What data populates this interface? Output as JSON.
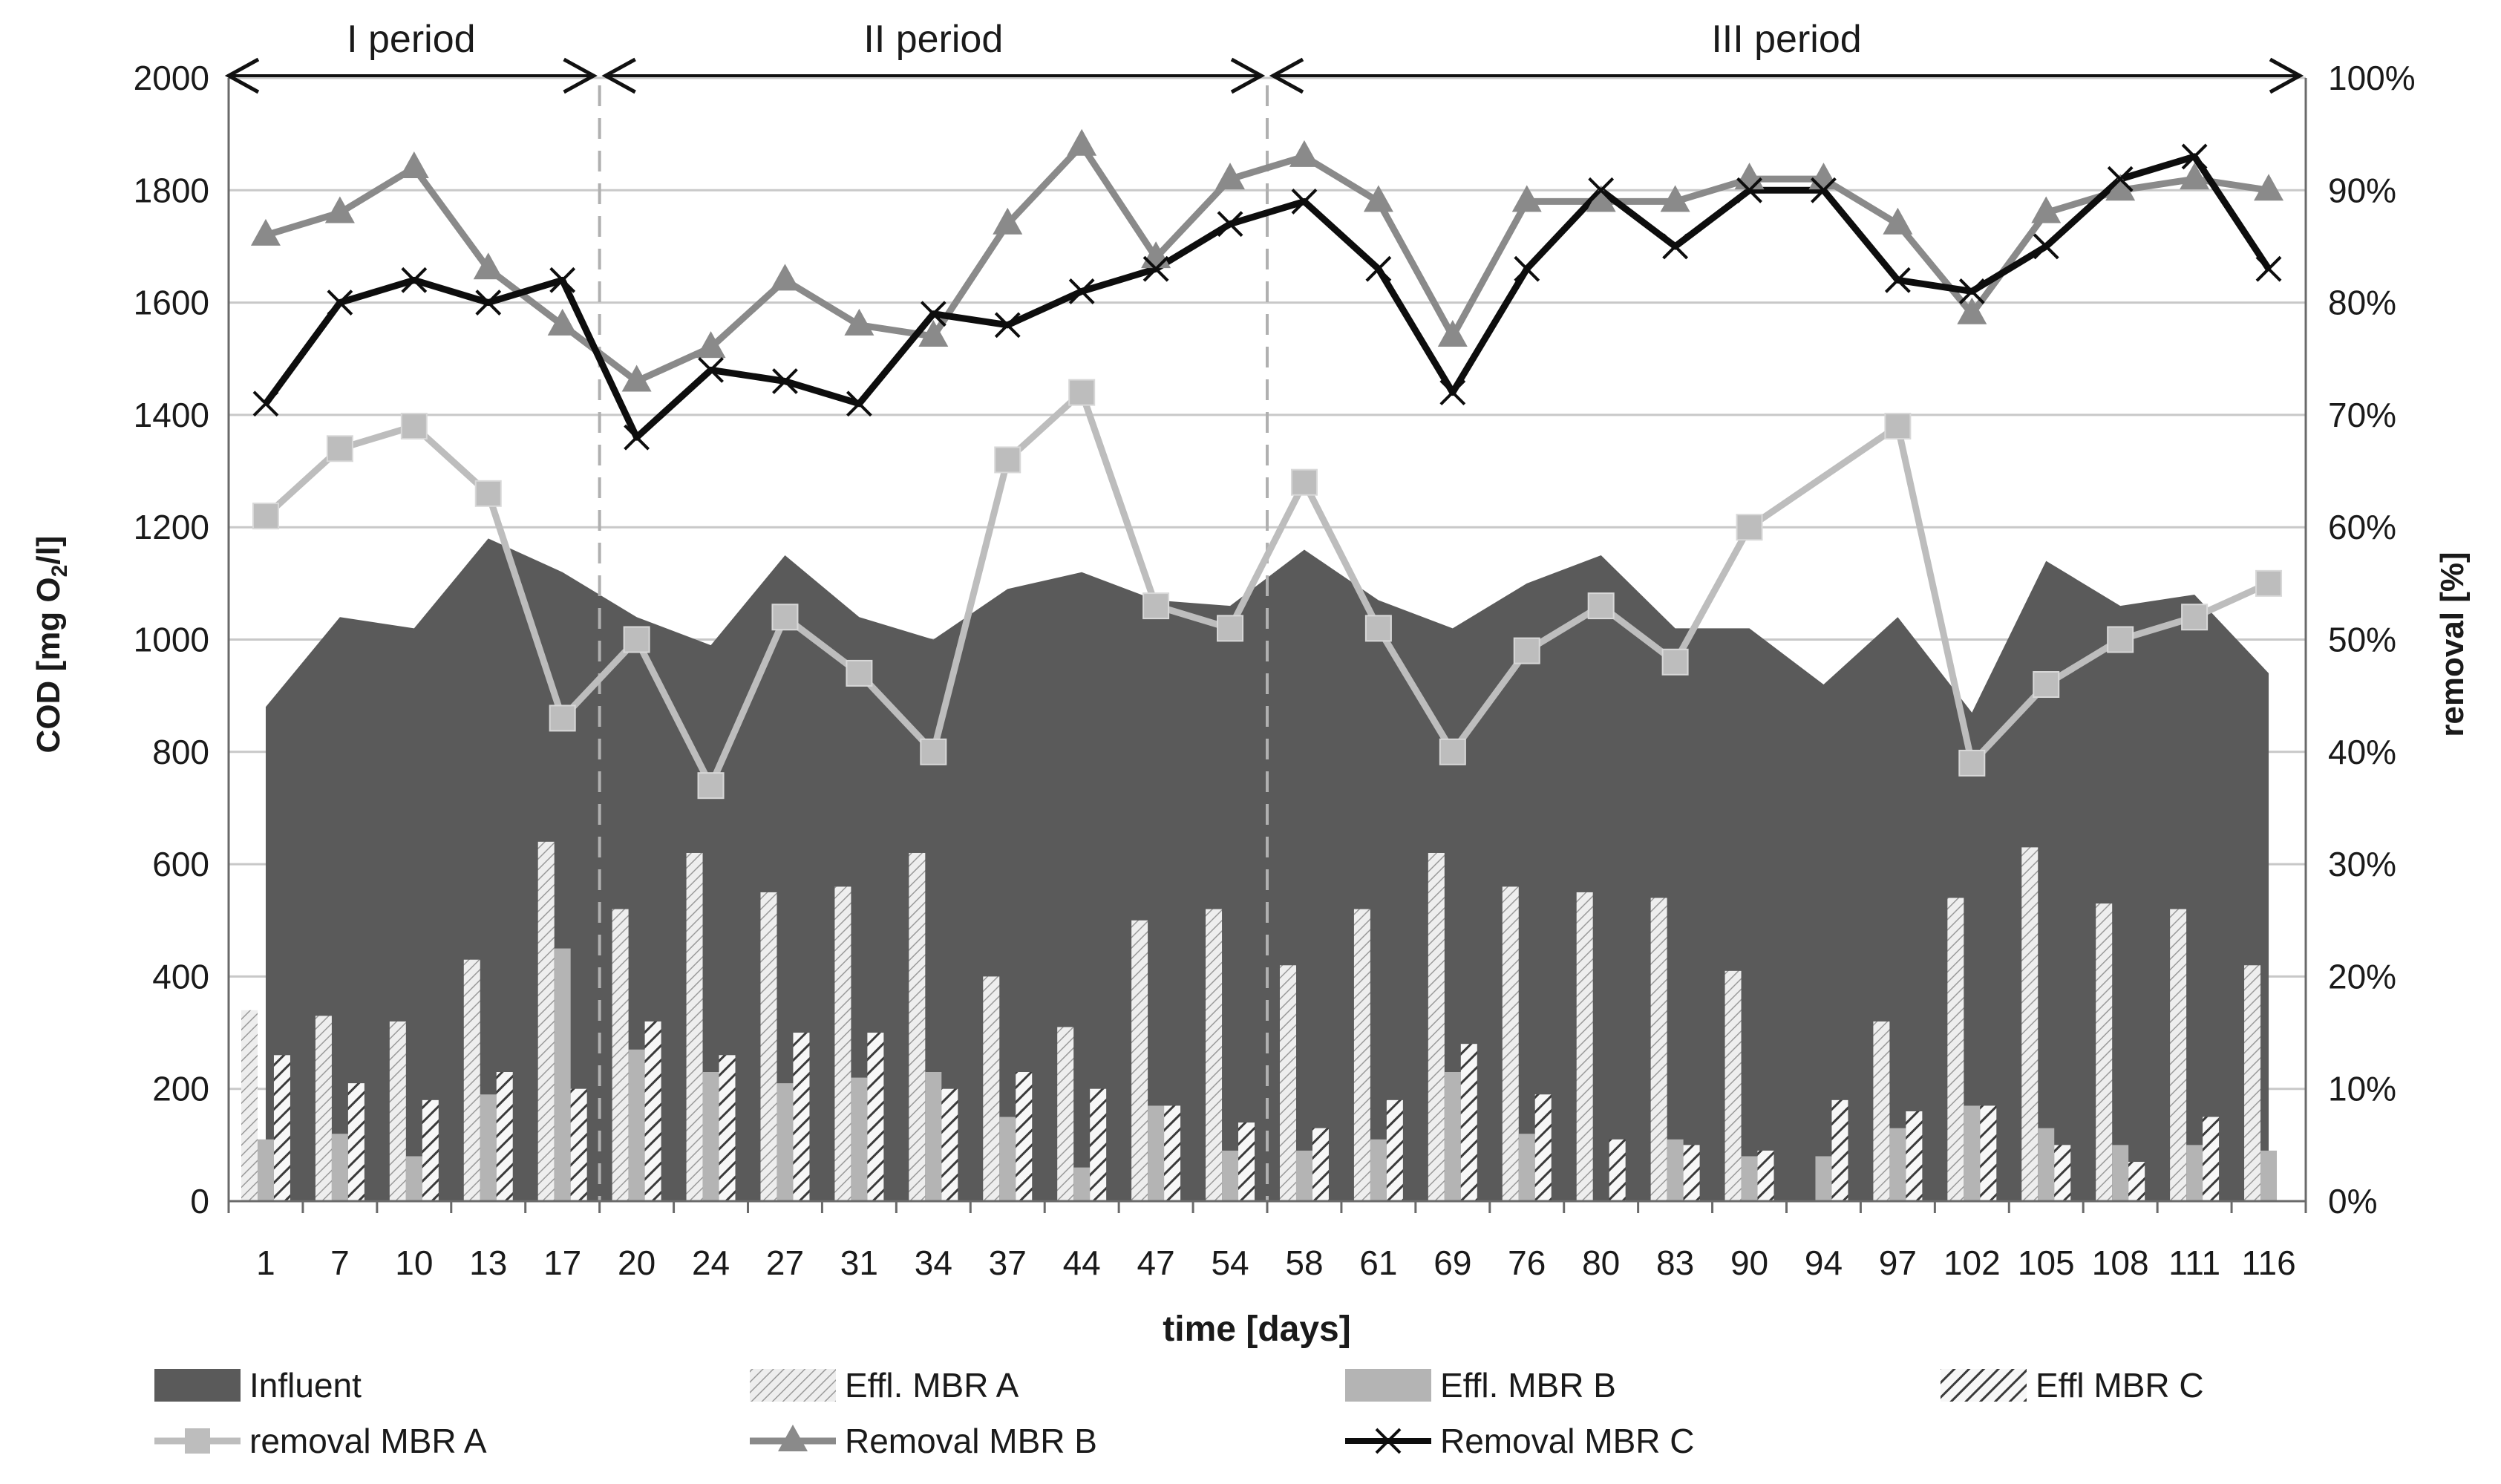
{
  "chart_data": {
    "type": "bar",
    "title": "",
    "xlabel": "time [days]",
    "ylabel_left": "COD [mg O2/l]",
    "ylabel_left_main": "COD [mg O",
    "ylabel_left_sub": "2",
    "ylabel_left_tail": "/l]",
    "ylabel_right": "removal [%]",
    "ylim_left": [
      0,
      2000
    ],
    "ylim_right": [
      0,
      100
    ],
    "yticks_left": [
      "0",
      "200",
      "400",
      "600",
      "800",
      "1000",
      "1200",
      "1400",
      "1600",
      "1800",
      "2000"
    ],
    "yticks_right": [
      "0%",
      "10%",
      "20%",
      "30%",
      "40%",
      "50%",
      "60%",
      "70%",
      "80%",
      "90%",
      "100%"
    ],
    "categories": [
      "1",
      "7",
      "10",
      "13",
      "17",
      "20",
      "24",
      "27",
      "31",
      "34",
      "37",
      "44",
      "47",
      "54",
      "58",
      "61",
      "69",
      "76",
      "80",
      "83",
      "90",
      "94",
      "97",
      "102",
      "105",
      "108",
      "111",
      "116"
    ],
    "periods": [
      {
        "label": "I period",
        "from": 0,
        "to": 5
      },
      {
        "label": "II period",
        "from": 5,
        "to": 14
      },
      {
        "label": "III period",
        "from": 14,
        "to": 28
      }
    ],
    "series": [
      {
        "name": "Influent",
        "type": "area",
        "axis": "left",
        "values": [
          880,
          1040,
          1020,
          1180,
          1120,
          1040,
          990,
          1150,
          1040,
          1000,
          1090,
          1120,
          1070,
          1060,
          1160,
          1070,
          1020,
          1100,
          1150,
          1020,
          1020,
          920,
          1040,
          870,
          1140,
          1060,
          1080,
          940
        ]
      },
      {
        "name": "Effl. MBR A",
        "type": "bar",
        "axis": "left",
        "values": [
          340,
          330,
          320,
          430,
          640,
          520,
          620,
          550,
          560,
          620,
          400,
          310,
          500,
          520,
          420,
          520,
          620,
          560,
          550,
          540,
          410,
          0,
          320,
          540,
          630,
          530,
          520,
          420
        ]
      },
      {
        "name": "Effl. MBR B",
        "type": "bar",
        "axis": "left",
        "values": [
          110,
          120,
          80,
          190,
          450,
          270,
          230,
          210,
          220,
          230,
          150,
          60,
          170,
          90,
          90,
          110,
          230,
          120,
          0,
          110,
          80,
          80,
          130,
          170,
          130,
          100,
          100,
          90
        ]
      },
      {
        "name": "Effl MBR C",
        "type": "bar",
        "axis": "left",
        "values": [
          260,
          210,
          180,
          230,
          200,
          320,
          260,
          300,
          300,
          200,
          230,
          200,
          170,
          140,
          130,
          180,
          280,
          190,
          110,
          100,
          90,
          180,
          160,
          170,
          100,
          70,
          150,
          0
        ]
      },
      {
        "name": "removal MBR A",
        "type": "line",
        "axis": "right",
        "marker": "square",
        "values": [
          61,
          67,
          69,
          63,
          43,
          50,
          37,
          52,
          47,
          40,
          66,
          72,
          53,
          51,
          64,
          51,
          40,
          49,
          53,
          48,
          60,
          null,
          69,
          39,
          46,
          50,
          52,
          55
        ]
      },
      {
        "name": "Removal MBR B",
        "type": "line",
        "axis": "right",
        "marker": "triangle",
        "values": [
          86,
          88,
          92,
          83,
          78,
          73,
          76,
          82,
          78,
          77,
          87,
          94,
          84,
          91,
          93,
          89,
          77,
          89,
          89,
          89,
          91,
          91,
          87,
          79,
          88,
          90,
          91,
          90
        ]
      },
      {
        "name": "Removal MBR C",
        "type": "line",
        "axis": "right",
        "marker": "x",
        "values": [
          71,
          80,
          82,
          80,
          82,
          68,
          74,
          73,
          71,
          79,
          78,
          81,
          83,
          87,
          89,
          83,
          72,
          83,
          90,
          85,
          90,
          90,
          82,
          81,
          85,
          91,
          93,
          83
        ]
      }
    ],
    "legend": [
      {
        "label": "Influent",
        "swatch": "influent"
      },
      {
        "label": "Effl. MBR A",
        "swatch": "bar-a"
      },
      {
        "label": "Effl. MBR B",
        "swatch": "bar-b"
      },
      {
        "label": "Effl MBR C",
        "swatch": "bar-c"
      },
      {
        "label": "removal MBR A",
        "swatch": "line-a"
      },
      {
        "label": "Removal MBR B",
        "swatch": "line-b"
      },
      {
        "label": "Removal MBR C",
        "swatch": "line-c"
      }
    ],
    "legend_position": "bottom",
    "grid": true,
    "colors": {
      "influent": "#5a5a5a",
      "bar_a": "#d0d0d0",
      "bar_b": "#b4b4b4",
      "bar_c": "#f2f2f2",
      "line_a": "#bdbdbd",
      "line_b": "#8a8a8a",
      "line_c": "#0d0d0d",
      "grid": "#c8c8c8",
      "divider": "#b0b0b0"
    }
  }
}
